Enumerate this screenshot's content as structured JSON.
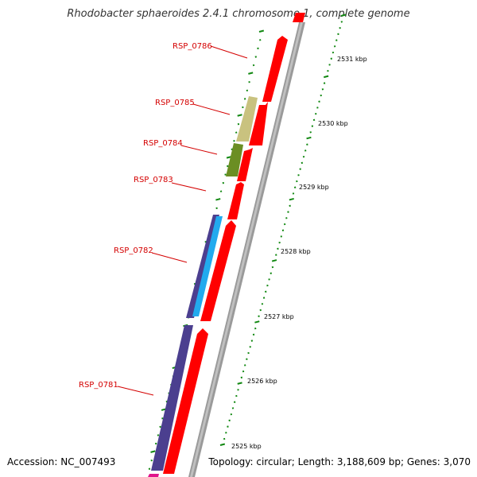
{
  "title": "Rhodobacter sphaeroides 2.4.1 chromosome 1, complete genome",
  "footer": {
    "accession": "Accession: NC_007493",
    "summary": "Topology: circular; Length: 3,188,609 bp; Genes: 3,070"
  },
  "genes": [
    {
      "label": "RSP_0786",
      "color": "#ff0000"
    },
    {
      "label": "RSP_0785",
      "color": "#ff0000"
    },
    {
      "label": "RSP_0784",
      "color": "#ff0000"
    },
    {
      "label": "RSP_0783",
      "color": "#ff0000"
    },
    {
      "label": "RSP_0782",
      "color": "#ff0000"
    },
    {
      "label": "RSP_0781",
      "color": "#ff0000"
    }
  ],
  "ticks": [
    "2531 kbp",
    "2530 kbp",
    "2529 kbp",
    "2528 kbp",
    "2527 kbp",
    "2526 kbp",
    "2525 kbp"
  ],
  "colors": {
    "backbone": "#999999",
    "cds": "#ff0000",
    "feature_tan": "#c9c27f",
    "feature_olive": "#6b8e23",
    "feature_indigo": "#4b3f8f",
    "feature_cyan": "#22aaee",
    "feature_magenta": "#e0148c",
    "tick_green": "#118811",
    "label_red": "#d40000"
  }
}
